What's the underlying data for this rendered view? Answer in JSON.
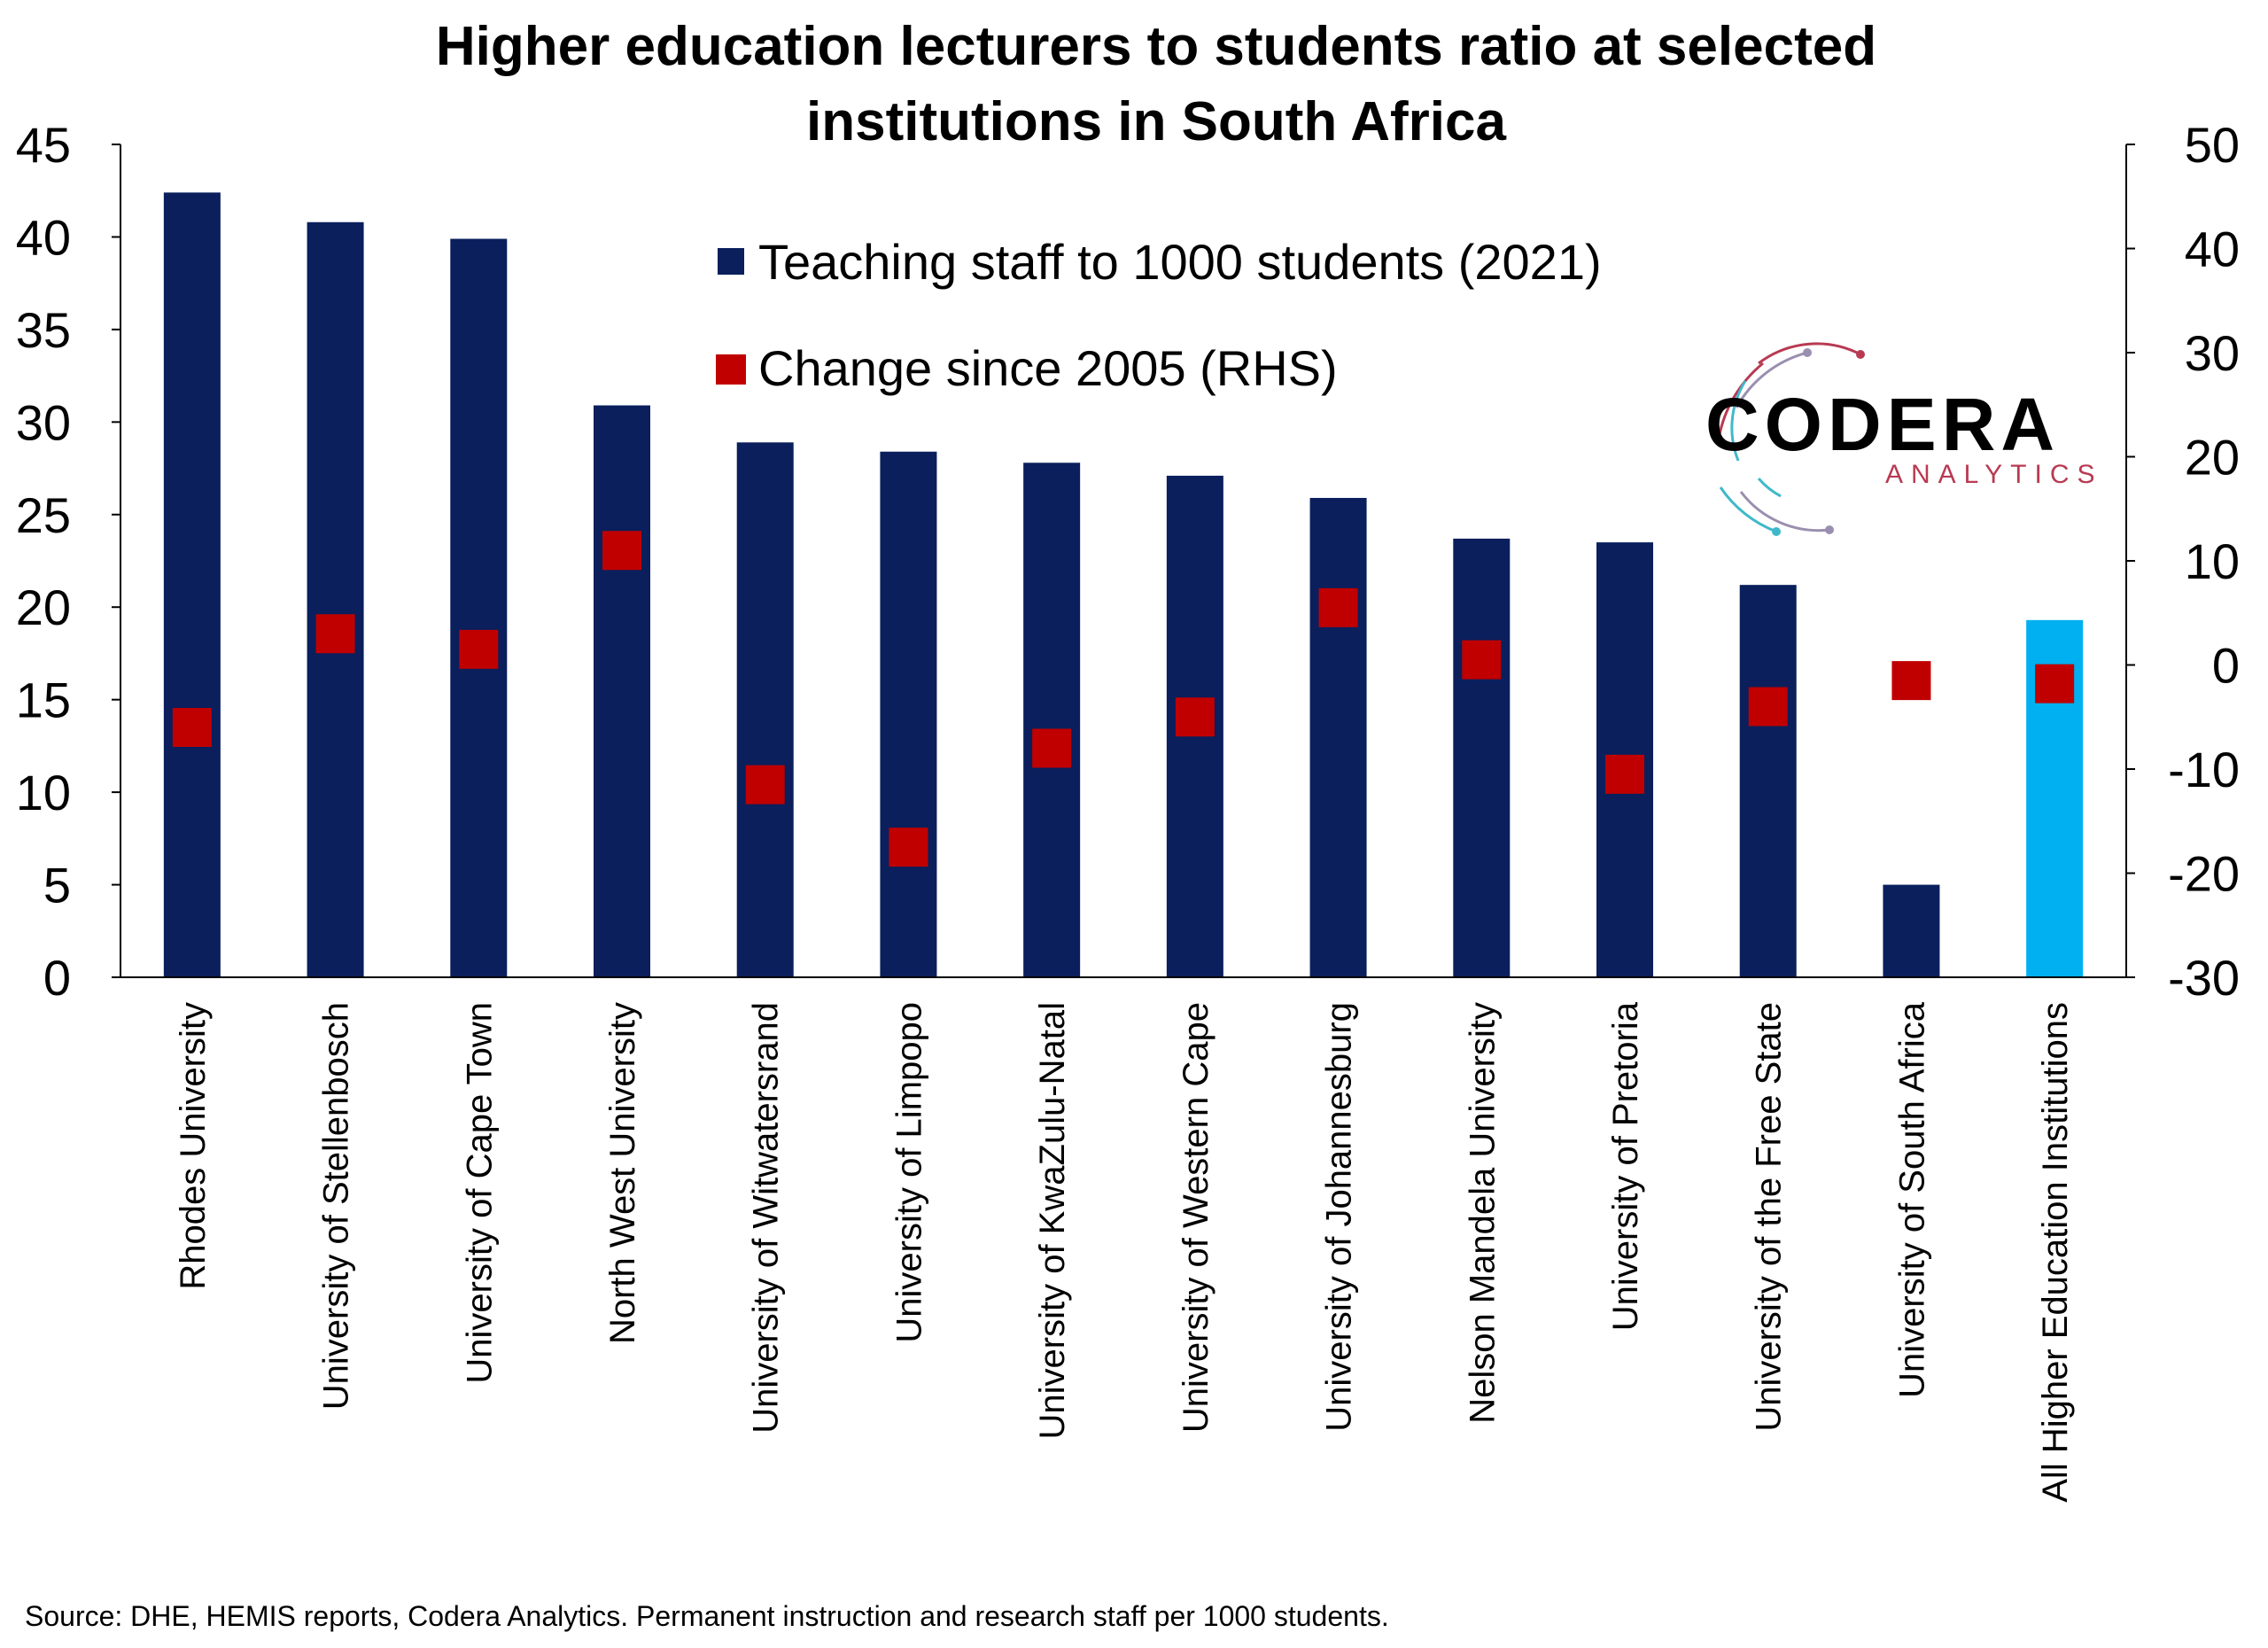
{
  "chart_data": {
    "type": "bar",
    "title": "Higher education lecturers to students ratio at selected institutions in South Africa",
    "title_lines": [
      "Higher education lecturers to students ratio at selected",
      "institutions in South Africa"
    ],
    "categories": [
      "Rhodes University",
      "University of Stellenbosch",
      "University of Cape Town",
      "North West University",
      "University of Witwatersrand",
      "University of Limpopo",
      "University of KwaZulu-Natal",
      "University of Western Cape",
      "University of Johannesburg",
      "Nelson Mandela University",
      "University of Pretoria",
      "University of the Free State",
      "University of South Africa",
      "All Higher Education Institutions"
    ],
    "series": [
      {
        "name": "Teaching staff to 1000 students (2021)",
        "kind": "bar",
        "axis": "left",
        "color": "#0a1f5c",
        "highlight_color": "#00b0f0",
        "highlight_index": 13,
        "values": [
          42.4,
          40.8,
          39.9,
          30.9,
          28.9,
          28.4,
          27.8,
          27.1,
          25.9,
          23.7,
          23.5,
          21.2,
          5.0,
          19.3
        ]
      },
      {
        "name": "Change since 2005 (RHS)",
        "kind": "marker",
        "axis": "right",
        "color": "#c00000",
        "values": [
          -6.0,
          3.0,
          1.5,
          11.0,
          -11.5,
          -17.5,
          -8.0,
          -5.0,
          5.5,
          0.5,
          -10.5,
          -4.0,
          -1.5,
          -1.8
        ]
      }
    ],
    "y_left": {
      "min": 0,
      "max": 45,
      "ticks": [
        0,
        5,
        10,
        15,
        20,
        25,
        30,
        35,
        40,
        45
      ]
    },
    "y_right": {
      "min": -30,
      "max": 50,
      "ticks": [
        -30,
        -20,
        -10,
        0,
        10,
        20,
        30,
        40,
        50
      ]
    },
    "grid": false,
    "legend_placement": "top-center",
    "xlabel": "",
    "ylabel": ""
  },
  "logo": {
    "name": "CODERA",
    "sub": "ANALYTICS"
  },
  "source": "Source: DHE, HEMIS reports, Codera Analytics. Permanent instruction and research staff per 1000 students."
}
